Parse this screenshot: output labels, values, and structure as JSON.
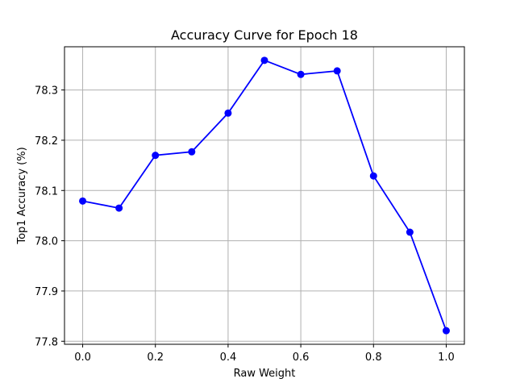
{
  "chart_data": {
    "type": "line",
    "title": "Accuracy Curve for Epoch 18",
    "xlabel": "Raw Weight",
    "ylabel": "Top1 Accuracy (%)",
    "x": [
      0.0,
      0.1,
      0.2,
      0.3,
      0.4,
      0.5,
      0.6,
      0.7,
      0.8,
      0.9,
      1.0
    ],
    "series": [
      {
        "values": [
          78.079,
          78.065,
          78.17,
          78.177,
          78.254,
          78.359,
          78.331,
          78.338,
          78.129,
          78.017,
          77.821
        ],
        "color": "#0000ff",
        "marker": "circle"
      }
    ],
    "xlim": [
      -0.05,
      1.05
    ],
    "ylim": [
      77.794,
      78.386
    ],
    "xticks": [
      "0.0",
      "0.2",
      "0.4",
      "0.6",
      "0.8",
      "1.0"
    ],
    "yticks": [
      "77.8",
      "77.9",
      "78.0",
      "78.1",
      "78.2",
      "78.3"
    ],
    "grid": true,
    "grid_color": "#b0b0b0"
  }
}
